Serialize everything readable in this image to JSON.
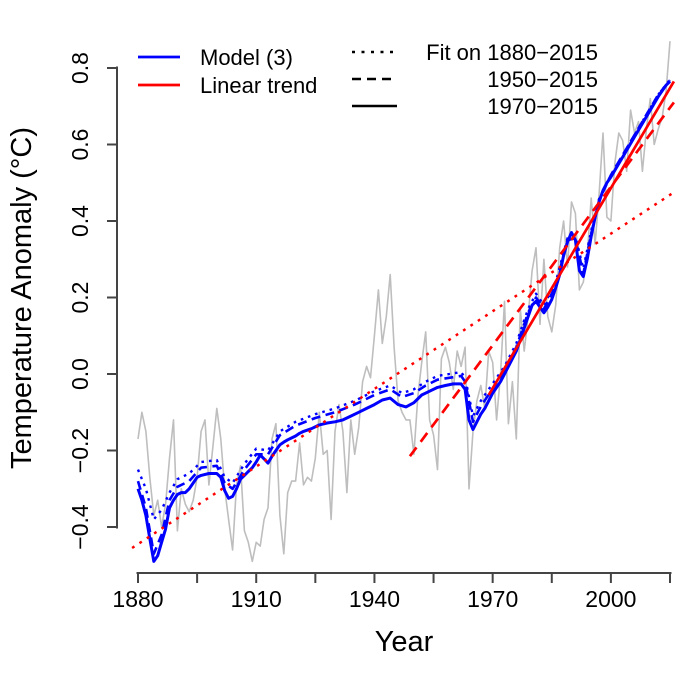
{
  "figure": {
    "background": "#ffffff",
    "axis_color": "#444444",
    "text_color": "#000000"
  },
  "chart_data": {
    "type": "line",
    "title": "",
    "xlabel": "Year",
    "ylabel": "Temperature Anomaly (°C)",
    "x_range_years": [
      1880,
      2015
    ],
    "y_range": [
      -0.4,
      0.8
    ],
    "grid": false,
    "legend_position": "top-left-inside",
    "x_axis": {
      "ticks": [
        {
          "v": 1880,
          "label": "1880"
        },
        {
          "v": 1895,
          "label": ""
        },
        {
          "v": 1910,
          "label": "1910"
        },
        {
          "v": 1925,
          "label": ""
        },
        {
          "v": 1940,
          "label": "1940"
        },
        {
          "v": 1955,
          "label": ""
        },
        {
          "v": 1970,
          "label": "1970"
        },
        {
          "v": 1985,
          "label": ""
        },
        {
          "v": 2000,
          "label": "2000"
        },
        {
          "v": 2015,
          "label": ""
        }
      ]
    },
    "y_axis": {
      "ticks": [
        {
          "v": 0.8,
          "label": "0.8"
        },
        {
          "v": 0.6,
          "label": "0.6"
        },
        {
          "v": 0.4,
          "label": "0.4"
        },
        {
          "v": 0.2,
          "label": "0.2"
        },
        {
          "v": 0.0,
          "label": "0.0"
        },
        {
          "v": -0.2,
          "label": "−0.2"
        },
        {
          "v": -0.4,
          "label": "−0.4"
        }
      ]
    },
    "legend": {
      "series_block": [
        {
          "label": "Model (3)",
          "color": "#0000FF",
          "style": "solid"
        },
        {
          "label": "Linear trend",
          "color": "#FF0000",
          "style": "solid"
        }
      ],
      "fit_block": {
        "color": "#000000",
        "items": [
          {
            "label": "Fit on 1880−2015",
            "style": "dotted"
          },
          {
            "label": "1950−2015",
            "style": "dashed"
          },
          {
            "label": "1970−2015",
            "style": "solid"
          }
        ]
      }
    },
    "series": [
      {
        "name": "observed-annual-anomaly",
        "color": "#BEBEBE",
        "style": "solid",
        "start_year": 1880,
        "values": [
          -0.17,
          -0.1,
          -0.15,
          -0.27,
          -0.37,
          -0.33,
          -0.4,
          -0.34,
          -0.22,
          -0.12,
          -0.41,
          -0.3,
          -0.34,
          -0.36,
          -0.33,
          -0.27,
          -0.15,
          -0.12,
          -0.29,
          -0.19,
          -0.09,
          -0.17,
          -0.3,
          -0.38,
          -0.46,
          -0.29,
          -0.24,
          -0.41,
          -0.44,
          -0.49,
          -0.44,
          -0.45,
          -0.38,
          -0.35,
          -0.17,
          -0.13,
          -0.37,
          -0.47,
          -0.31,
          -0.28,
          -0.28,
          -0.18,
          -0.29,
          -0.27,
          -0.28,
          -0.22,
          -0.1,
          -0.21,
          -0.2,
          -0.38,
          -0.15,
          -0.08,
          -0.15,
          -0.31,
          -0.12,
          -0.21,
          -0.14,
          -0.02,
          0.02,
          -0.01,
          0.1,
          0.22,
          0.08,
          0.15,
          0.26,
          0.07,
          -0.07,
          -0.1,
          -0.12,
          -0.12,
          -0.21,
          -0.06,
          0.03,
          0.11,
          -0.12,
          -0.16,
          -0.25,
          0.04,
          0.07,
          0.03,
          -0.04,
          0.06,
          0.02,
          0.07,
          -0.3,
          -0.15,
          -0.07,
          -0.03,
          -0.09,
          0.06,
          0.03,
          -0.12,
          0.0,
          0.19,
          -0.13,
          -0.02,
          -0.17,
          0.17,
          0.06,
          0.15,
          0.27,
          0.33,
          0.13,
          0.3,
          0.15,
          0.11,
          0.18,
          0.33,
          0.4,
          0.28,
          0.45,
          0.42,
          0.22,
          0.24,
          0.31,
          0.46,
          0.34,
          0.47,
          0.63,
          0.41,
          0.4,
          0.55,
          0.63,
          0.61,
          0.53,
          0.69,
          0.63,
          0.66,
          0.53,
          0.64,
          0.72,
          0.6,
          0.64,
          0.67,
          0.74,
          0.87
        ]
      },
      {
        "name": "model-fit-1880-2015",
        "color": "#0000FF",
        "style": "dotted",
        "points": [
          [
            1880,
            -0.25
          ],
          [
            1882,
            -0.3
          ],
          [
            1884,
            -0.38
          ],
          [
            1886,
            -0.355
          ],
          [
            1888,
            -0.31
          ],
          [
            1890,
            -0.275
          ],
          [
            1893,
            -0.26
          ],
          [
            1896,
            -0.23
          ],
          [
            1900,
            -0.225
          ],
          [
            1902,
            -0.27
          ],
          [
            1904,
            -0.285
          ],
          [
            1907,
            -0.235
          ],
          [
            1910,
            -0.195
          ],
          [
            1913,
            -0.2
          ],
          [
            1916,
            -0.15
          ],
          [
            1920,
            -0.125
          ],
          [
            1925,
            -0.105
          ],
          [
            1930,
            -0.09
          ],
          [
            1935,
            -0.07
          ],
          [
            1940,
            -0.045
          ],
          [
            1944,
            -0.03
          ],
          [
            1947,
            -0.05
          ],
          [
            1950,
            -0.04
          ],
          [
            1953,
            -0.02
          ],
          [
            1956,
            -0.005
          ],
          [
            1959,
            0.0
          ],
          [
            1962,
            0.005
          ],
          [
            1963,
            -0.01
          ],
          [
            1965,
            -0.11
          ],
          [
            1967,
            -0.07
          ],
          [
            1970,
            -0.025
          ],
          [
            1973,
            0.02
          ],
          [
            1976,
            0.08
          ],
          [
            1979,
            0.17
          ],
          [
            1981,
            0.21
          ],
          [
            1983,
            0.18
          ],
          [
            1986,
            0.24
          ],
          [
            1989,
            0.355
          ],
          [
            1991,
            0.36
          ],
          [
            1993,
            0.275
          ],
          [
            1995,
            0.375
          ],
          [
            1997,
            0.458
          ],
          [
            2000,
            0.52
          ],
          [
            2004,
            0.59
          ],
          [
            2008,
            0.66
          ],
          [
            2012,
            0.73
          ],
          [
            2015,
            0.77
          ]
        ]
      },
      {
        "name": "model-fit-1950-2015",
        "color": "#0000FF",
        "style": "dashed",
        "points": [
          [
            1880,
            -0.28
          ],
          [
            1882,
            -0.35
          ],
          [
            1884,
            -0.47
          ],
          [
            1886,
            -0.42
          ],
          [
            1888,
            -0.33
          ],
          [
            1890,
            -0.295
          ],
          [
            1893,
            -0.28
          ],
          [
            1896,
            -0.245
          ],
          [
            1900,
            -0.24
          ],
          [
            1902,
            -0.285
          ],
          [
            1904,
            -0.3
          ],
          [
            1907,
            -0.25
          ],
          [
            1910,
            -0.21
          ],
          [
            1913,
            -0.21
          ],
          [
            1916,
            -0.16
          ],
          [
            1920,
            -0.135
          ],
          [
            1925,
            -0.115
          ],
          [
            1930,
            -0.1
          ],
          [
            1935,
            -0.08
          ],
          [
            1940,
            -0.055
          ],
          [
            1944,
            -0.04
          ],
          [
            1947,
            -0.06
          ],
          [
            1950,
            -0.05
          ],
          [
            1953,
            -0.03
          ],
          [
            1956,
            -0.015
          ],
          [
            1959,
            -0.01
          ],
          [
            1962,
            -0.005
          ],
          [
            1963,
            -0.02
          ],
          [
            1965,
            -0.125
          ],
          [
            1967,
            -0.085
          ],
          [
            1970,
            -0.038
          ],
          [
            1973,
            0.01
          ],
          [
            1976,
            0.07
          ],
          [
            1979,
            0.16
          ],
          [
            1981,
            0.2
          ],
          [
            1983,
            0.17
          ],
          [
            1986,
            0.23
          ],
          [
            1989,
            0.35
          ],
          [
            1991,
            0.355
          ],
          [
            1993,
            0.262
          ],
          [
            1995,
            0.367
          ],
          [
            1997,
            0.454
          ],
          [
            2000,
            0.52
          ],
          [
            2004,
            0.59
          ],
          [
            2008,
            0.66
          ],
          [
            2012,
            0.73
          ],
          [
            2015,
            0.768
          ]
        ]
      },
      {
        "name": "model-fit-1970-2015",
        "color": "#0000FF",
        "style": "solid",
        "points": [
          [
            1880,
            -0.3
          ],
          [
            1881,
            -0.33
          ],
          [
            1882,
            -0.37
          ],
          [
            1883,
            -0.43
          ],
          [
            1884,
            -0.49
          ],
          [
            1885,
            -0.475
          ],
          [
            1886,
            -0.44
          ],
          [
            1887,
            -0.405
          ],
          [
            1888,
            -0.35
          ],
          [
            1889,
            -0.33
          ],
          [
            1890,
            -0.315
          ],
          [
            1891,
            -0.31
          ],
          [
            1892,
            -0.31
          ],
          [
            1893,
            -0.3
          ],
          [
            1894,
            -0.285
          ],
          [
            1895,
            -0.27
          ],
          [
            1896,
            -0.265
          ],
          [
            1898,
            -0.26
          ],
          [
            1900,
            -0.26
          ],
          [
            1901,
            -0.27
          ],
          [
            1902,
            -0.305
          ],
          [
            1903,
            -0.325
          ],
          [
            1904,
            -0.32
          ],
          [
            1905,
            -0.3
          ],
          [
            1906,
            -0.275
          ],
          [
            1907,
            -0.265
          ],
          [
            1908,
            -0.255
          ],
          [
            1909,
            -0.245
          ],
          [
            1910,
            -0.23
          ],
          [
            1911,
            -0.212
          ],
          [
            1912,
            -0.222
          ],
          [
            1913,
            -0.233
          ],
          [
            1914,
            -0.215
          ],
          [
            1915,
            -0.2
          ],
          [
            1916,
            -0.185
          ],
          [
            1917,
            -0.178
          ],
          [
            1918,
            -0.172
          ],
          [
            1919,
            -0.167
          ],
          [
            1920,
            -0.162
          ],
          [
            1921,
            -0.155
          ],
          [
            1922,
            -0.15
          ],
          [
            1924,
            -0.143
          ],
          [
            1926,
            -0.133
          ],
          [
            1928,
            -0.128
          ],
          [
            1930,
            -0.125
          ],
          [
            1932,
            -0.12
          ],
          [
            1934,
            -0.11
          ],
          [
            1936,
            -0.1
          ],
          [
            1938,
            -0.09
          ],
          [
            1940,
            -0.08
          ],
          [
            1942,
            -0.068
          ],
          [
            1944,
            -0.063
          ],
          [
            1946,
            -0.08
          ],
          [
            1948,
            -0.086
          ],
          [
            1950,
            -0.075
          ],
          [
            1952,
            -0.055
          ],
          [
            1954,
            -0.045
          ],
          [
            1956,
            -0.035
          ],
          [
            1958,
            -0.03
          ],
          [
            1960,
            -0.026
          ],
          [
            1962,
            -0.026
          ],
          [
            1963,
            -0.04
          ],
          [
            1964,
            -0.12
          ],
          [
            1965,
            -0.145
          ],
          [
            1966,
            -0.125
          ],
          [
            1967,
            -0.105
          ],
          [
            1968,
            -0.09
          ],
          [
            1969,
            -0.07
          ],
          [
            1970,
            -0.05
          ],
          [
            1971,
            -0.035
          ],
          [
            1972,
            -0.02
          ],
          [
            1973,
            0.0
          ],
          [
            1974,
            0.02
          ],
          [
            1975,
            0.04
          ],
          [
            1976,
            0.06
          ],
          [
            1977,
            0.09
          ],
          [
            1978,
            0.12
          ],
          [
            1979,
            0.15
          ],
          [
            1980,
            0.18
          ],
          [
            1981,
            0.19
          ],
          [
            1982,
            0.175
          ],
          [
            1983,
            0.16
          ],
          [
            1984,
            0.175
          ],
          [
            1985,
            0.195
          ],
          [
            1986,
            0.225
          ],
          [
            1987,
            0.26
          ],
          [
            1988,
            0.31
          ],
          [
            1989,
            0.345
          ],
          [
            1990,
            0.37
          ],
          [
            1991,
            0.35
          ],
          [
            1992,
            0.27
          ],
          [
            1993,
            0.255
          ],
          [
            1994,
            0.3
          ],
          [
            1995,
            0.36
          ],
          [
            1996,
            0.41
          ],
          [
            1997,
            0.45
          ],
          [
            1998,
            0.48
          ],
          [
            1999,
            0.5
          ],
          [
            2000,
            0.515
          ],
          [
            2002,
            0.55
          ],
          [
            2004,
            0.585
          ],
          [
            2006,
            0.62
          ],
          [
            2008,
            0.655
          ],
          [
            2010,
            0.69
          ],
          [
            2012,
            0.725
          ],
          [
            2014,
            0.755
          ],
          [
            2015,
            0.765
          ]
        ]
      },
      {
        "name": "linear-trend-1880-2015",
        "color": "#FF0000",
        "style": "dotted",
        "points": [
          [
            1878.5,
            -0.455
          ],
          [
            2016,
            0.475
          ]
        ]
      },
      {
        "name": "linear-trend-1950-2015",
        "color": "#FF0000",
        "style": "dashed",
        "points": [
          [
            1949,
            -0.215
          ],
          [
            2016,
            0.71
          ]
        ]
      },
      {
        "name": "linear-trend-1970-2015",
        "color": "#FF0000",
        "style": "solid",
        "points": [
          [
            1969,
            -0.055
          ],
          [
            2016,
            0.765
          ]
        ]
      }
    ]
  }
}
